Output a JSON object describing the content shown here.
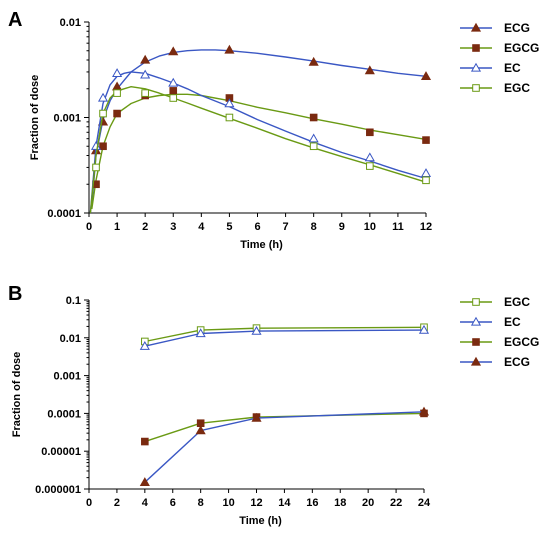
{
  "chart_data": [
    {
      "panel": "A",
      "type": "line",
      "xlabel": "Time (h)",
      "ylabel": "Fraction of dose",
      "xlim": [
        0,
        12
      ],
      "ylim": [
        0.0001,
        0.01
      ],
      "yscale": "log",
      "x_ticks": [
        "0",
        "1",
        "2",
        "3",
        "4",
        "5",
        "6",
        "7",
        "8",
        "9",
        "10",
        "11",
        "12"
      ],
      "y_ticks": [
        "0.0001",
        "0.001",
        "0.01"
      ],
      "legend_position": "right",
      "series": [
        {
          "name": "ECG",
          "color": "#3a57c4",
          "marker": "filled-triangle",
          "marker_color": "#7a2a10",
          "x": [
            0.25,
            0.5,
            1,
            2,
            3,
            5,
            8,
            10,
            12
          ],
          "y": [
            0.00045,
            0.0009,
            0.0021,
            0.004,
            0.0049,
            0.0051,
            0.0038,
            0.0031,
            0.0027
          ],
          "curve_x": [
            0.1,
            0.25,
            0.5,
            0.75,
            1,
            1.5,
            2,
            2.5,
            3,
            3.5,
            4,
            4.5,
            5,
            6,
            7,
            8,
            9,
            10,
            11,
            12
          ],
          "curve_y": [
            0.00012,
            0.0004,
            0.00095,
            0.0015,
            0.002,
            0.003,
            0.0038,
            0.0044,
            0.0048,
            0.005,
            0.0051,
            0.0051,
            0.005,
            0.0047,
            0.0043,
            0.0039,
            0.0035,
            0.0032,
            0.0029,
            0.0027
          ]
        },
        {
          "name": "EGCG",
          "color": "#6a9a14",
          "marker": "filled-square",
          "marker_color": "#7a2a10",
          "x": [
            0.25,
            0.5,
            1,
            2,
            3,
            5,
            8,
            10,
            12
          ],
          "y": [
            0.0002,
            0.0005,
            0.0011,
            0.0017,
            0.0019,
            0.0016,
            0.001,
            0.0007,
            0.00058
          ],
          "curve_x": [
            0.1,
            0.25,
            0.5,
            0.75,
            1,
            1.5,
            2,
            2.5,
            3,
            3.5,
            4,
            5,
            6,
            7,
            8,
            9,
            10,
            11,
            12
          ],
          "curve_y": [
            0.00011,
            0.00022,
            0.0005,
            0.0008,
            0.0011,
            0.0014,
            0.0016,
            0.0017,
            0.00175,
            0.00175,
            0.0017,
            0.0015,
            0.00128,
            0.00112,
            0.00097,
            0.00085,
            0.00074,
            0.00066,
            0.00059
          ]
        },
        {
          "name": "EC",
          "color": "#3a57c4",
          "marker": "open-triangle",
          "marker_color": "#3a57c4",
          "x": [
            0.25,
            0.5,
            1,
            2,
            3,
            5,
            8,
            10,
            12
          ],
          "y": [
            0.0005,
            0.0016,
            0.0029,
            0.0028,
            0.0023,
            0.0014,
            0.0006,
            0.00038,
            0.00026
          ],
          "curve_x": [
            0.05,
            0.25,
            0.5,
            0.75,
            1,
            1.25,
            1.5,
            2,
            2.5,
            3,
            3.5,
            4,
            5,
            6,
            7,
            8,
            9,
            10,
            11,
            12
          ],
          "curve_y": [
            0.0001,
            0.0005,
            0.0014,
            0.0022,
            0.0027,
            0.0029,
            0.003,
            0.0029,
            0.0026,
            0.0023,
            0.002,
            0.0017,
            0.0013,
            0.00095,
            0.00072,
            0.00055,
            0.00043,
            0.00035,
            0.00028,
            0.00023
          ]
        },
        {
          "name": "EGC",
          "color": "#6a9a14",
          "marker": "open-square",
          "marker_color": "#6a9a14",
          "x": [
            0.25,
            0.5,
            1,
            2,
            3,
            5,
            8,
            10,
            12
          ],
          "y": [
            0.0003,
            0.0011,
            0.0018,
            0.0018,
            0.0016,
            0.001,
            0.0005,
            0.00031,
            0.00022
          ],
          "curve_x": [
            0.05,
            0.25,
            0.5,
            0.75,
            1,
            1.5,
            2,
            2.5,
            3,
            3.5,
            4,
            5,
            6,
            7,
            8,
            9,
            10,
            11,
            12
          ],
          "curve_y": [
            0.0001,
            0.0004,
            0.0011,
            0.0016,
            0.0019,
            0.0021,
            0.002,
            0.0018,
            0.0016,
            0.00142,
            0.00125,
            0.00098,
            0.00077,
            0.0006,
            0.00048,
            0.00039,
            0.00032,
            0.00026,
            0.00021
          ]
        }
      ]
    },
    {
      "panel": "B",
      "type": "line",
      "xlabel": "Time (h)",
      "ylabel": "Fraction of dose",
      "xlim": [
        0,
        24
      ],
      "ylim": [
        1e-06,
        0.1
      ],
      "yscale": "log",
      "x_ticks": [
        "0",
        "2",
        "4",
        "6",
        "8",
        "10",
        "12",
        "14",
        "16",
        "18",
        "20",
        "22",
        "24"
      ],
      "y_ticks": [
        "0.000001",
        "0.00001",
        "0.0001",
        "0.001",
        "0.01",
        "0.1"
      ],
      "legend_position": "right",
      "series": [
        {
          "name": "EGC",
          "color": "#6a9a14",
          "marker": "open-square",
          "marker_color": "#6a9a14",
          "x": [
            4,
            8,
            12,
            24
          ],
          "y": [
            0.008,
            0.016,
            0.018,
            0.019
          ]
        },
        {
          "name": "EC",
          "color": "#3a57c4",
          "marker": "open-triangle",
          "marker_color": "#3a57c4",
          "x": [
            4,
            8,
            12,
            24
          ],
          "y": [
            0.006,
            0.013,
            0.015,
            0.016
          ]
        },
        {
          "name": "EGCG",
          "color": "#6a9a14",
          "marker": "filled-square",
          "marker_color": "#7a2a10",
          "x": [
            4,
            8,
            12,
            24
          ],
          "y": [
            1.8e-05,
            5.5e-05,
            8e-05,
            0.0001
          ]
        },
        {
          "name": "ECG",
          "color": "#3a57c4",
          "marker": "filled-triangle",
          "marker_color": "#7a2a10",
          "x": [
            4,
            8,
            12,
            24
          ],
          "y": [
            1.5e-06,
            3.5e-05,
            7.5e-05,
            0.00011
          ]
        }
      ]
    }
  ]
}
